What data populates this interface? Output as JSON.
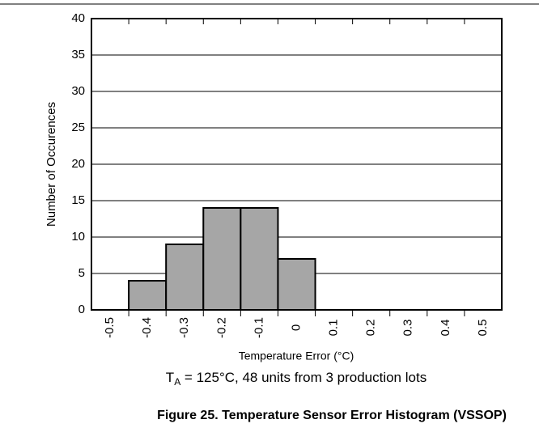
{
  "chart_data": {
    "type": "bar",
    "title": "Figure 25. Temperature Sensor Error Histogram (VSSOP)",
    "xlabel": "Temperature Error (°C)",
    "ylabel": "Number of Occurences",
    "annotation": {
      "main": "T",
      "sub": "A",
      "rest": " = 125°C, 48 units from 3 production lots"
    },
    "categories": [
      "-0.5",
      "-0.4",
      "-0.3",
      "-0.2",
      "-0.1",
      "0",
      "0.1",
      "0.2",
      "0.3",
      "0.4",
      "0.5"
    ],
    "values": [
      0,
      4,
      9,
      14,
      14,
      7,
      0,
      0,
      0,
      0,
      0
    ],
    "color": "#a6a6a6",
    "ylim": [
      0,
      40
    ],
    "yticks": [
      0,
      5,
      10,
      15,
      20,
      25,
      30,
      35,
      40
    ],
    "grid": true
  }
}
